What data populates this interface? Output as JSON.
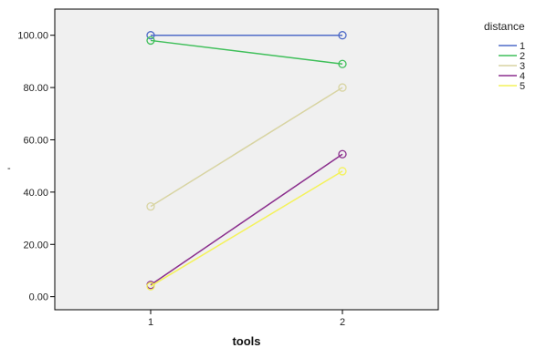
{
  "chart_data": {
    "type": "line",
    "title": "",
    "xlabel": "tools",
    "ylabel": "-",
    "x": [
      1,
      2
    ],
    "x_tick_labels": [
      "1",
      "2"
    ],
    "xlim": [
      0.5,
      2.5
    ],
    "ylim": [
      -5,
      110
    ],
    "y_ticks": [
      0,
      20,
      40,
      60,
      80,
      100
    ],
    "y_tick_labels": [
      "0.00",
      "20.00",
      "40.00",
      "60.00",
      "80.00",
      "100.00"
    ],
    "grid": false,
    "markers": "open-circle",
    "legend": {
      "title": "distance",
      "position": "top-right-outside"
    },
    "series": [
      {
        "name": "1",
        "values": [
          100,
          100
        ],
        "color": "#4f6bc8"
      },
      {
        "name": "2",
        "values": [
          98,
          89
        ],
        "color": "#3fbf5a"
      },
      {
        "name": "3",
        "values": [
          34.5,
          80
        ],
        "color": "#d8d4a2"
      },
      {
        "name": "4",
        "values": [
          4.5,
          54.5
        ],
        "color": "#8b2f8d"
      },
      {
        "name": "5",
        "values": [
          4,
          48
        ],
        "color": "#f4f25a"
      }
    ]
  }
}
